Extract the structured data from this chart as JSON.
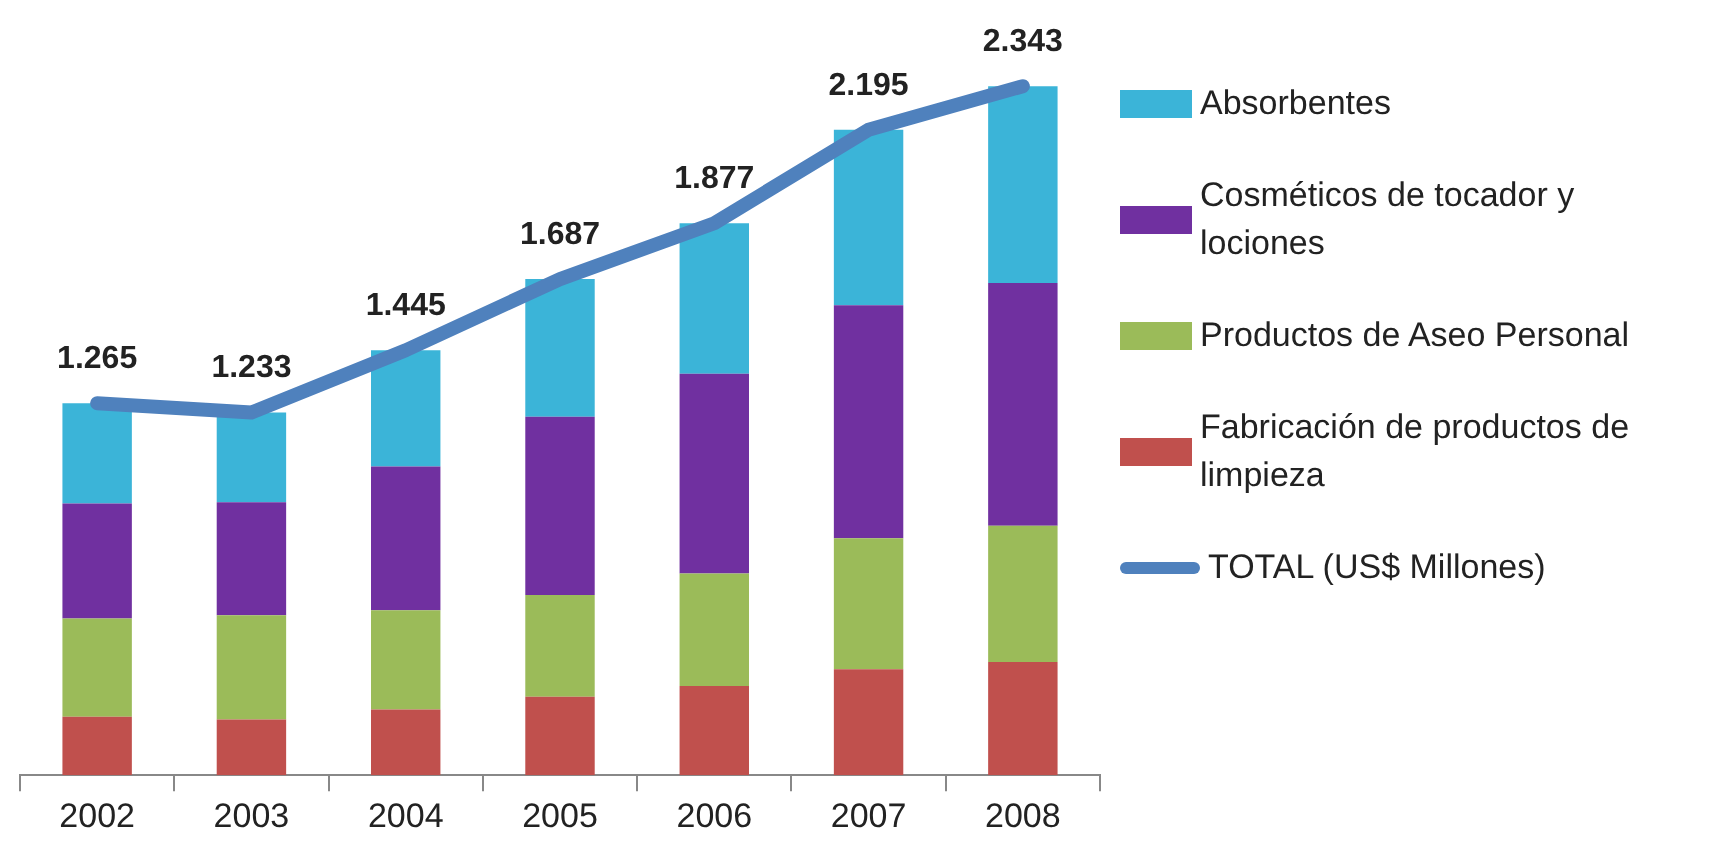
{
  "chart_data": {
    "type": "bar",
    "stacked": true,
    "categories": [
      "2002",
      "2003",
      "2004",
      "2005",
      "2006",
      "2007",
      "2008"
    ],
    "tick_labels": "x",
    "grid": false,
    "legend": "right",
    "series": [
      {
        "name": "Fabricación de productos de limpieza",
        "color": "#c0504d",
        "values": [
          199,
          189,
          223,
          267,
          303,
          360,
          385
        ]
      },
      {
        "name": "Productos de Aseo Personal",
        "color": "#9bbb59",
        "values": [
          334,
          355,
          338,
          346,
          383,
          446,
          463
        ]
      },
      {
        "name": "Cosméticos de tocador y lociones",
        "color": "#7030a0",
        "values": [
          391,
          384,
          489,
          606,
          679,
          792,
          826
        ]
      },
      {
        "name": "Absorbentes",
        "color": "#3bb4d8",
        "values": [
          341,
          305,
          395,
          468,
          512,
          597,
          669
        ]
      },
      {
        "name": "TOTAL (US$ Millones)",
        "type": "line",
        "color": "#4f81bd",
        "marker": "none",
        "values": [
          1265,
          1233,
          1445,
          1687,
          1877,
          2195,
          2343
        ],
        "value_labels": [
          "1.265",
          "1.233",
          "1.445",
          "1.687",
          "1.877",
          "2.195",
          "2.343"
        ]
      }
    ]
  }
}
